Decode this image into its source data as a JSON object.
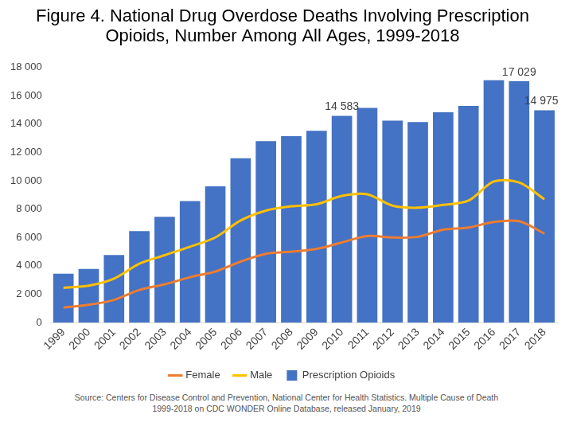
{
  "chart_data": {
    "type": "bar",
    "title": [
      "Figure 4. National Drug Overdose Deaths Involving Prescription",
      "Opioids, Number Among All Ages, 1999-2018"
    ],
    "source": "Source: Centers for Disease Control and Prevention, National Center for Health Statistics. Multiple Cause of Death 1999-2018 on CDC WONDER Online Database, released January, 2019",
    "categories": [
      "1999",
      "2000",
      "2001",
      "2002",
      "2003",
      "2004",
      "2005",
      "2006",
      "2007",
      "2008",
      "2009",
      "2010",
      "2011",
      "2012",
      "2013",
      "2014",
      "2015",
      "2016",
      "2017",
      "2018"
    ],
    "series": [
      {
        "name": "Prescription Opioids",
        "type": "bar",
        "color": "#4472c4",
        "values": [
          3442,
          3785,
          4770,
          6445,
          7456,
          8577,
          9612,
          11589,
          12796,
          13149,
          13523,
          14583,
          15140,
          14240,
          14145,
          14838,
          15281,
          17087,
          17029,
          14975
        ],
        "value_labels": [
          null,
          null,
          null,
          null,
          null,
          null,
          null,
          null,
          null,
          null,
          null,
          "14 583",
          null,
          null,
          null,
          null,
          null,
          null,
          "17 029",
          "14 975"
        ]
      },
      {
        "name": "Female",
        "type": "line",
        "color": "#ed7d31",
        "values": [
          1050,
          1250,
          1600,
          2300,
          2700,
          3200,
          3600,
          4300,
          4850,
          5000,
          5200,
          5653,
          6100,
          6000,
          6050,
          6550,
          6700,
          7100,
          7149,
          6275
        ]
      },
      {
        "name": "Male",
        "type": "line",
        "color": "#ffc000",
        "values": [
          2450,
          2600,
          3100,
          4150,
          4750,
          5350,
          6000,
          7200,
          7900,
          8200,
          8350,
          8930,
          9050,
          8250,
          8100,
          8300,
          8600,
          9950,
          9880,
          8700
        ]
      }
    ],
    "ylim": [
      0,
      18000
    ],
    "yticks": [
      0,
      {
        "value": 2000,
        "label": "2 000"
      },
      {
        "value": 4000,
        "label": "4 000"
      },
      {
        "value": 6000,
        "label": "6 000"
      },
      {
        "value": 8000,
        "label": "8 000"
      },
      {
        "value": 10000,
        "label": "10 000"
      },
      {
        "value": 12000,
        "label": "12 000"
      },
      {
        "value": 14000,
        "label": "14 000"
      },
      {
        "value": 16000,
        "label": "16 000"
      },
      {
        "value": 18000,
        "label": "18 000"
      }
    ],
    "grid": false,
    "legend": "bottom",
    "data_labels": true
  }
}
